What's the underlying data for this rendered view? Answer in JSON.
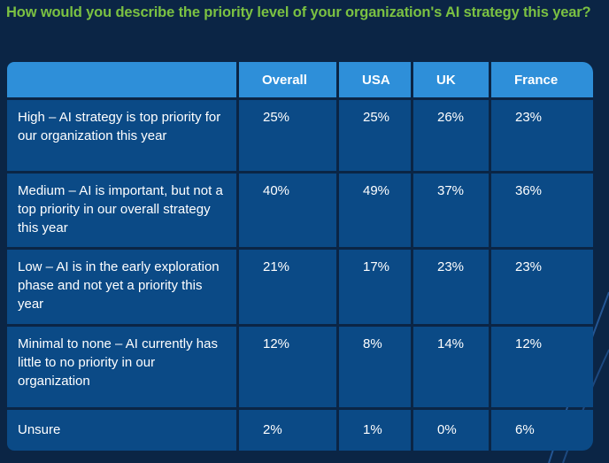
{
  "title": "How would you describe the priority level of your organization's AI strategy this year?",
  "chart_data": {
    "type": "table",
    "title": "How would you describe the priority level of your organization's AI strategy this year?",
    "columns": [
      "",
      "Overall",
      "USA",
      "UK",
      "France"
    ],
    "rows": [
      {
        "label": "High – AI strategy is top priority for our organization this year",
        "values": [
          "25%",
          "25%",
          "26%",
          "23%"
        ]
      },
      {
        "label": "Medium – AI is important, but not a top priority in our overall strategy this year",
        "values": [
          "40%",
          "49%",
          "37%",
          "36%"
        ]
      },
      {
        "label": "Low – AI is in the early exploration phase and not yet a priority this year",
        "values": [
          "21%",
          "17%",
          "23%",
          "23%"
        ]
      },
      {
        "label": "Minimal to none – AI currently has little to no priority in our organization",
        "values": [
          "12%",
          "8%",
          "14%",
          "12%"
        ]
      },
      {
        "label": "Unsure",
        "values": [
          "2%",
          "1%",
          "0%",
          "6%"
        ]
      }
    ]
  },
  "colors": {
    "background": "#0b2545",
    "title": "#7bc142",
    "header": "#2e8fd9",
    "cell": "#0b4a86",
    "text": "#ffffff"
  }
}
